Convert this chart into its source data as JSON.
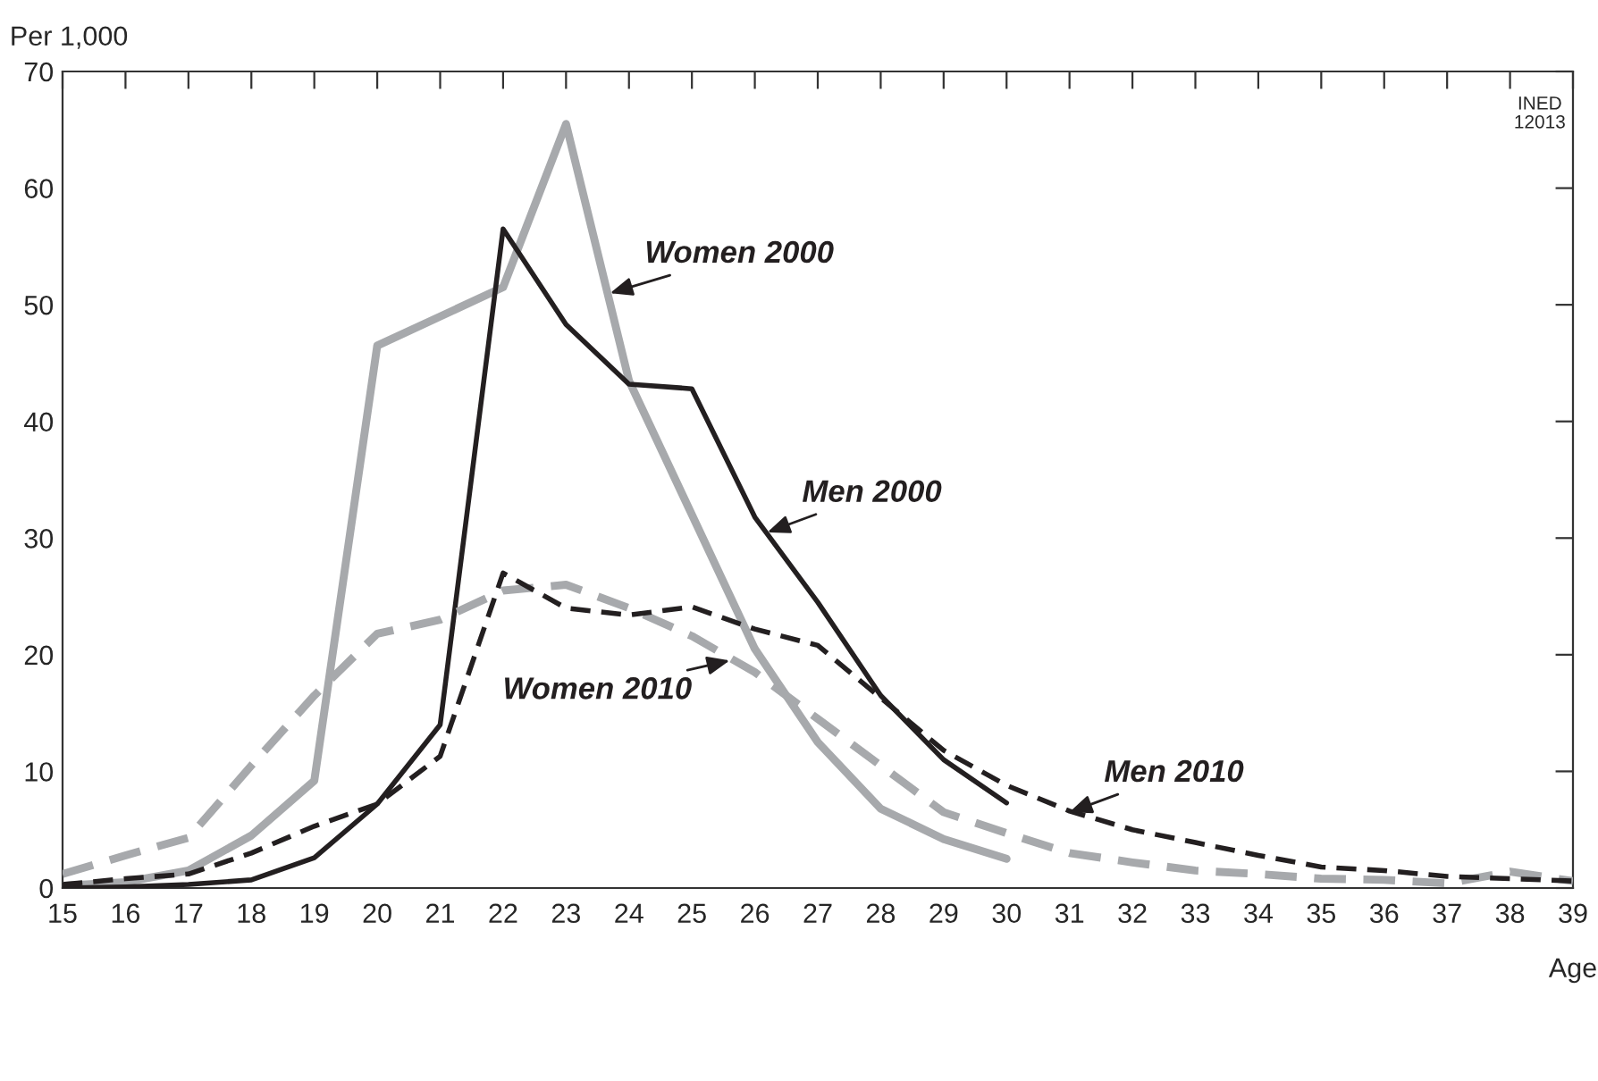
{
  "chart_data": {
    "type": "line",
    "xlabel": "Age",
    "ylabel": "Per 1,000",
    "x": [
      15,
      16,
      17,
      18,
      19,
      20,
      21,
      22,
      23,
      24,
      25,
      26,
      27,
      28,
      29,
      30,
      31,
      32,
      33,
      34,
      35,
      36,
      37,
      38,
      39
    ],
    "xlim": [
      15,
      39
    ],
    "xticks": [
      15,
      16,
      17,
      18,
      19,
      20,
      21,
      22,
      23,
      24,
      25,
      26,
      27,
      28,
      29,
      30,
      31,
      32,
      33,
      34,
      35,
      36,
      37,
      38,
      39
    ],
    "ylim": [
      0,
      70
    ],
    "yticks": [
      0,
      10,
      20,
      30,
      40,
      50,
      60,
      70
    ],
    "grid": false,
    "legend": false,
    "marker": "none",
    "series": [
      {
        "color": "#a7a9ac",
        "line_style": "solid",
        "values": [
          0.2,
          0.5,
          1.5,
          4.5,
          9.2,
          46.5,
          49,
          51.5,
          65.5,
          43.5,
          32,
          20.5,
          12.5,
          6.8,
          4.2,
          2.5,
          null,
          null,
          null,
          null,
          null,
          null,
          null,
          null,
          null
        ]
      },
      {
        "color": "#231f20",
        "line_style": "solid",
        "values": [
          0,
          0.1,
          0.3,
          0.7,
          2.6,
          7.2,
          14,
          56.5,
          48.3,
          43.2,
          42.8,
          31.8,
          24.5,
          16.5,
          11,
          7.3,
          null,
          null,
          null,
          null,
          null,
          null,
          null,
          null,
          null
        ]
      },
      {
        "color": "#a7a9ac",
        "line_style": "dashed",
        "values": [
          1.2,
          2.8,
          4.3,
          10.5,
          16.5,
          21.8,
          23,
          25.5,
          26,
          24,
          21.6,
          18.5,
          14.5,
          10.5,
          6.5,
          4.7,
          3,
          2.2,
          1.5,
          1.2,
          0.8,
          0.7,
          0.4,
          1.4,
          0.6
        ]
      },
      {
        "color": "#231f20",
        "line_style": "dashed",
        "values": [
          0.3,
          0.8,
          1.2,
          3,
          5.3,
          7.2,
          11.3,
          27,
          24,
          23.4,
          24.1,
          22.2,
          20.8,
          16.3,
          11.8,
          8.8,
          6.6,
          5,
          3.9,
          2.8,
          1.8,
          1.5,
          1,
          0.8,
          0.6
        ]
      }
    ],
    "annotations": [
      {
        "text": "Women 2000",
        "x": 23.7,
        "y": 51
      },
      {
        "text": "Men 2000",
        "x": 26.2,
        "y": 30.5
      },
      {
        "text": "Women 2010",
        "x": 25.6,
        "y": 19.5
      },
      {
        "text": "Men 2010",
        "x": 31,
        "y": 6.5
      },
      "INED\n12013"
    ]
  }
}
